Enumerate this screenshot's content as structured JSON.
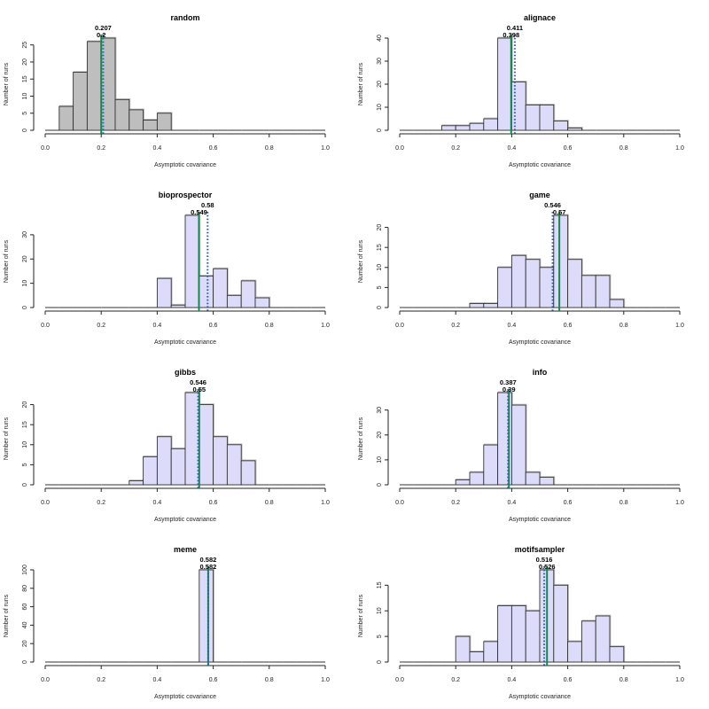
{
  "chart_data": [
    {
      "type": "bar",
      "title": "random",
      "xlabel": "Asymptotic covariance",
      "ylabel": "Number of runs",
      "xlim": [
        0,
        1
      ],
      "x_ticks": [
        "0.0",
        "0.2",
        "0.4",
        "0.6",
        "0.8",
        "1.0"
      ],
      "y_ticks": [
        0,
        5,
        10,
        15,
        20,
        25
      ],
      "bin_width": 0.05,
      "bin_start": 0.0,
      "values": [
        0,
        7,
        17,
        26,
        27,
        9,
        6,
        3,
        5,
        0,
        0,
        0,
        0,
        0,
        0,
        0,
        0,
        0,
        0,
        0
      ],
      "bar_color": "#bebebe",
      "dotted_line": {
        "value": 0.207,
        "label": "0.207",
        "color": "#2a5db0"
      },
      "solid_line": {
        "value": 0.2,
        "label": "0.2",
        "color": "#16884e"
      }
    },
    {
      "type": "bar",
      "title": "alignace",
      "xlabel": "Asymptotic covariance",
      "ylabel": "Number of runs",
      "xlim": [
        0,
        1
      ],
      "x_ticks": [
        "0.0",
        "0.2",
        "0.4",
        "0.6",
        "0.8",
        "1.0"
      ],
      "y_ticks": [
        0,
        10,
        20,
        30,
        40
      ],
      "bin_width": 0.05,
      "bin_start": 0.0,
      "values": [
        0,
        0,
        0,
        2,
        2,
        3,
        5,
        40,
        21,
        11,
        11,
        4,
        1,
        0,
        0,
        0,
        0,
        0,
        0,
        0
      ],
      "bar_color": "#dcdcfa",
      "dotted_line": {
        "value": 0.411,
        "label": "0.411",
        "color": "#2a5db0"
      },
      "solid_line": {
        "value": 0.398,
        "label": "0.398",
        "color": "#16884e"
      }
    },
    {
      "type": "bar",
      "title": "bioprospector",
      "xlabel": "Asymptotic covariance",
      "ylabel": "Number of runs",
      "xlim": [
        0,
        1
      ],
      "x_ticks": [
        "0.0",
        "0.2",
        "0.4",
        "0.6",
        "0.8",
        "1.0"
      ],
      "y_ticks": [
        0,
        10,
        20,
        30
      ],
      "bin_width": 0.05,
      "bin_start": 0.0,
      "values": [
        0,
        0,
        0,
        0,
        0,
        0,
        0,
        0,
        12,
        1,
        38,
        13,
        16,
        5,
        11,
        4,
        0,
        0,
        0,
        0
      ],
      "bar_color": "#dcdcfa",
      "dotted_line": {
        "value": 0.58,
        "label": "0.58",
        "color": "#2a5db0"
      },
      "solid_line": {
        "value": 0.549,
        "label": "0.549",
        "color": "#16884e"
      }
    },
    {
      "type": "bar",
      "title": "game",
      "xlabel": "Asymptotic covariance",
      "ylabel": "Number of runs",
      "xlim": [
        0,
        1
      ],
      "x_ticks": [
        "0.0",
        "0.2",
        "0.4",
        "0.6",
        "0.8",
        "1.0"
      ],
      "y_ticks": [
        0,
        5,
        10,
        15,
        20
      ],
      "bin_width": 0.05,
      "bin_start": 0.0,
      "values": [
        0,
        0,
        0,
        0,
        0,
        1,
        1,
        10,
        13,
        12,
        10,
        23,
        12,
        8,
        8,
        2,
        0,
        0,
        0,
        0
      ],
      "bar_color": "#dcdcfa",
      "dotted_line": {
        "value": 0.546,
        "label": "0.546",
        "color": "#2a5db0"
      },
      "solid_line": {
        "value": 0.57,
        "label": "0.57",
        "color": "#16884e"
      }
    },
    {
      "type": "bar",
      "title": "gibbs",
      "xlabel": "Asymptotic covariance",
      "ylabel": "Number of runs",
      "xlim": [
        0,
        1
      ],
      "x_ticks": [
        "0.0",
        "0.2",
        "0.4",
        "0.6",
        "0.8",
        "1.0"
      ],
      "y_ticks": [
        0,
        5,
        10,
        15,
        20
      ],
      "bin_width": 0.05,
      "bin_start": 0.0,
      "values": [
        0,
        0,
        0,
        0,
        0,
        0,
        1,
        7,
        12,
        9,
        23,
        20,
        12,
        10,
        6,
        0,
        0,
        0,
        0,
        0
      ],
      "bar_color": "#dcdcfa",
      "dotted_line": {
        "value": 0.546,
        "label": "0.546",
        "color": "#2a5db0"
      },
      "solid_line": {
        "value": 0.55,
        "label": "0.55",
        "color": "#16884e"
      }
    },
    {
      "type": "bar",
      "title": "info",
      "xlabel": "Asymptotic covariance",
      "ylabel": "Number of runs",
      "xlim": [
        0,
        1
      ],
      "x_ticks": [
        "0.0",
        "0.2",
        "0.4",
        "0.6",
        "0.8",
        "1.0"
      ],
      "y_ticks": [
        0,
        10,
        20,
        30
      ],
      "bin_width": 0.05,
      "bin_start": 0.0,
      "values": [
        0,
        0,
        0,
        0,
        2,
        5,
        16,
        37,
        32,
        5,
        3,
        0,
        0,
        0,
        0,
        0,
        0,
        0,
        0,
        0
      ],
      "bar_color": "#dcdcfa",
      "dotted_line": {
        "value": 0.387,
        "label": "0.387",
        "color": "#2a5db0"
      },
      "solid_line": {
        "value": 0.39,
        "label": "0.39",
        "color": "#16884e"
      }
    },
    {
      "type": "bar",
      "title": "meme",
      "xlabel": "Asymptotic covariance",
      "ylabel": "Number of runs",
      "xlim": [
        0,
        1
      ],
      "x_ticks": [
        "0.0",
        "0.2",
        "0.4",
        "0.6",
        "0.8",
        "1.0"
      ],
      "y_ticks": [
        0,
        20,
        40,
        60,
        80,
        100
      ],
      "bin_width": 0.05,
      "bin_start": 0.0,
      "values": [
        0,
        0,
        0,
        0,
        0,
        0,
        0,
        0,
        0,
        0,
        0,
        100,
        0,
        0,
        0,
        0,
        0,
        0,
        0,
        0
      ],
      "bar_color": "#dcdcfa",
      "dotted_line": {
        "value": 0.582,
        "label": "0.582",
        "color": "#2a5db0"
      },
      "solid_line": {
        "value": 0.582,
        "label": "0.582",
        "color": "#16884e"
      }
    },
    {
      "type": "bar",
      "title": "motifsampler",
      "xlabel": "Asymptotic covariance",
      "ylabel": "Number of runs",
      "xlim": [
        0,
        1
      ],
      "x_ticks": [
        "0.0",
        "0.2",
        "0.4",
        "0.6",
        "0.8",
        "1.0"
      ],
      "y_ticks": [
        0,
        5,
        10,
        15
      ],
      "bin_width": 0.05,
      "bin_start": 0.0,
      "values": [
        0,
        0,
        0,
        0,
        5,
        2,
        4,
        11,
        11,
        10,
        18,
        15,
        4,
        8,
        9,
        3,
        0,
        0,
        0,
        0
      ],
      "bar_color": "#dcdcfa",
      "dotted_line": {
        "value": 0.516,
        "label": "0.516",
        "color": "#2a5db0"
      },
      "solid_line": {
        "value": 0.526,
        "label": "0.526",
        "color": "#16884e"
      }
    }
  ]
}
